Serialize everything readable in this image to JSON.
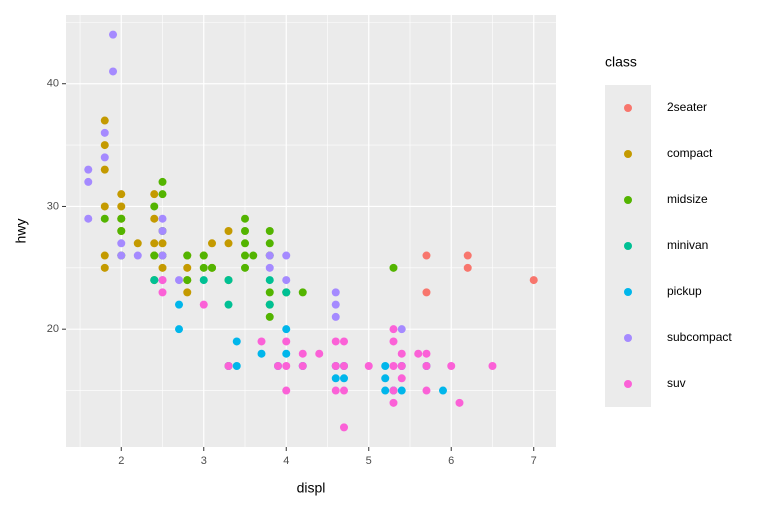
{
  "chart_data": {
    "type": "scatter",
    "x_label": "displ",
    "y_label": "hwy",
    "legend_title": "class",
    "xlim": [
      1.33,
      7.27
    ],
    "xticks": [
      2,
      3,
      4,
      5,
      6,
      7
    ],
    "ylim": [
      10.4,
      45.6
    ],
    "yticks": [
      20,
      30,
      40
    ],
    "grid": true,
    "minor_grid": true,
    "legend_position": "right",
    "series": [
      {
        "name": "2seater",
        "color": "#F8766D",
        "x": [
          5.7,
          5.7,
          6.2,
          6.2,
          7.0
        ],
        "values": [
          26,
          23,
          26,
          25,
          24
        ]
      },
      {
        "name": "compact",
        "color": "#C49A00",
        "x": [
          1.8,
          1.8,
          1.8,
          1.8,
          1.8,
          1.8,
          2.0,
          2.0,
          2.0,
          2.0,
          2.2,
          2.4,
          2.4,
          2.4,
          2.4,
          2.5,
          2.5,
          2.8,
          2.8,
          2.8,
          2.8,
          3.0,
          3.1,
          3.1,
          3.3,
          3.3
        ],
        "values": [
          37,
          35,
          33,
          30,
          26,
          25,
          31,
          30,
          29,
          28,
          27,
          31,
          29,
          27,
          26,
          25,
          27,
          26,
          25,
          24,
          23,
          26,
          27,
          25,
          28,
          27
        ]
      },
      {
        "name": "midsize",
        "color": "#53B400",
        "x": [
          1.8,
          2.0,
          2.0,
          2.0,
          2.4,
          2.5,
          2.5,
          2.5,
          2.4,
          2.4,
          2.5,
          2.8,
          2.8,
          3.0,
          3.0,
          3.1,
          3.3,
          3.5,
          3.5,
          3.5,
          3.5,
          3.5,
          3.6,
          3.8,
          3.8,
          3.8,
          3.8,
          3.8,
          3.8,
          4.0,
          4.2,
          5.3
        ],
        "values": [
          29,
          29,
          28,
          26,
          30,
          32,
          31,
          28,
          26,
          24,
          26,
          26,
          24,
          26,
          25,
          25,
          24,
          29,
          28,
          27,
          26,
          25,
          26,
          28,
          27,
          26,
          23,
          22,
          21,
          23,
          23,
          25
        ]
      },
      {
        "name": "minivan",
        "color": "#00C094",
        "x": [
          2.4,
          3.0,
          3.3,
          3.3,
          3.3,
          3.8,
          3.8,
          4.0
        ],
        "values": [
          24,
          24,
          24,
          22,
          17,
          24,
          22,
          23
        ]
      },
      {
        "name": "pickup",
        "color": "#00B6EB",
        "x": [
          2.7,
          2.7,
          3.4,
          3.4,
          3.7,
          3.9,
          4.0,
          4.0,
          4.2,
          4.6,
          4.6,
          4.7,
          5.2,
          5.2,
          5.2,
          5.3,
          5.4,
          5.7,
          5.9,
          4.7,
          5.4
        ],
        "values": [
          22,
          20,
          19,
          17,
          18,
          17,
          20,
          18,
          17,
          17,
          16,
          16,
          17,
          15,
          16,
          15,
          15,
          17,
          15,
          17,
          17
        ]
      },
      {
        "name": "subcompact",
        "color": "#A58AFF",
        "x": [
          1.6,
          1.6,
          1.6,
          1.8,
          1.8,
          1.9,
          1.9,
          2.0,
          2.0,
          2.2,
          2.5,
          2.5,
          2.5,
          2.5,
          2.7,
          3.8,
          3.8,
          4.0,
          4.0,
          4.6,
          4.6,
          4.6,
          5.4
        ],
        "values": [
          33,
          32,
          29,
          36,
          34,
          44,
          41,
          27,
          26,
          26,
          29,
          28,
          26,
          24,
          24,
          26,
          25,
          26,
          24,
          23,
          22,
          21,
          20
        ]
      },
      {
        "name": "suv",
        "color": "#FB61D7",
        "x": [
          2.5,
          2.5,
          3.0,
          3.3,
          3.7,
          4.0,
          4.0,
          4.0,
          4.2,
          4.4,
          4.6,
          4.6,
          4.6,
          4.7,
          4.7,
          4.7,
          4.7,
          5.0,
          5.3,
          5.3,
          5.3,
          5.3,
          5.3,
          5.4,
          5.4,
          5.4,
          5.6,
          5.7,
          5.7,
          5.7,
          6.0,
          6.1,
          6.5,
          4.2,
          3.9
        ],
        "values": [
          24,
          23,
          22,
          17,
          19,
          19,
          17,
          15,
          18,
          18,
          19,
          17,
          15,
          19,
          17,
          15,
          12,
          17,
          20,
          19,
          17,
          15,
          14,
          18,
          16,
          17,
          18,
          18,
          17,
          15,
          17,
          14,
          17,
          17,
          17
        ]
      }
    ]
  }
}
